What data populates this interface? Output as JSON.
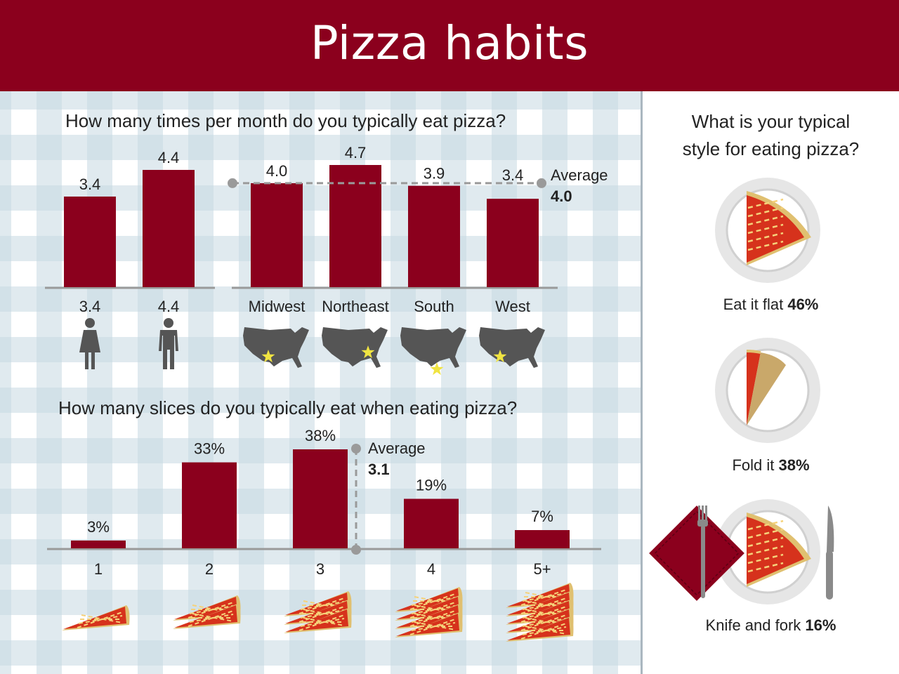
{
  "header": {
    "title": "Pizza habits"
  },
  "colors": {
    "bar": "#8b001d",
    "gray": "#555555",
    "star": "#f0e442",
    "crust": "#e0c070",
    "sauce": "#d6321c"
  },
  "monthly": {
    "question": "How many times per month do you typically eat pizza?",
    "average_label": "Average",
    "average_value": "4.0",
    "gender_icons": [
      "woman-icon",
      "man-icon"
    ],
    "region_icons": [
      "us-map-icon",
      "us-map-icon",
      "us-map-icon",
      "us-map-icon"
    ]
  },
  "slices": {
    "question": "How many slices do you typically eat when eating pizza?",
    "average_label": "Average",
    "average_value": "3.1"
  },
  "style": {
    "question_line1": "What is your typical",
    "question_line2": "style for eating pizza?",
    "options": [
      {
        "label": "Eat it flat",
        "value": "46%"
      },
      {
        "label": "Fold it",
        "value": "38%"
      },
      {
        "label": "Knife and fork",
        "value": "16%"
      }
    ]
  },
  "chart_data": [
    {
      "type": "bar",
      "title": "How many times per month do you typically eat pizza?",
      "categories": [
        "3.4",
        "4.4"
      ],
      "values": [
        3.4,
        4.4
      ],
      "value_labels": [
        "3.4",
        "4.4"
      ]
    },
    {
      "type": "bar",
      "title": "How many times per month do you typically eat pizza?",
      "categories": [
        "Midwest",
        "Northeast",
        "South",
        "West"
      ],
      "values": [
        4.0,
        4.7,
        3.9,
        3.4
      ],
      "value_labels": [
        "4.0",
        "4.7",
        "3.9",
        "3.4"
      ],
      "average": 4.0
    },
    {
      "type": "bar",
      "title": "How many slices do you typically eat when eating pizza?",
      "categories": [
        "1",
        "2",
        "3",
        "4",
        "5+"
      ],
      "values": [
        3,
        33,
        38,
        19,
        7
      ],
      "value_labels": [
        "3%",
        "33%",
        "38%",
        "19%",
        "7%"
      ],
      "average": 3.1
    },
    {
      "type": "pie",
      "title": "What is your typical style for eating pizza?",
      "categories": [
        "Eat it flat",
        "Fold it",
        "Knife and fork"
      ],
      "values": [
        46,
        38,
        16
      ]
    }
  ]
}
